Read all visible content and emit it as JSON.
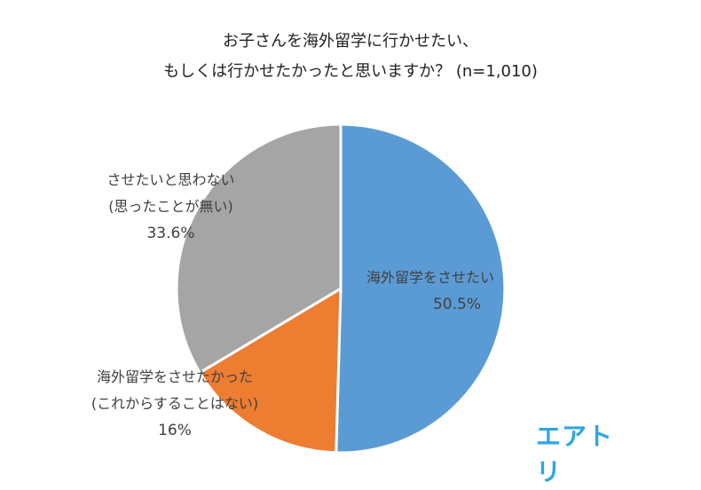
{
  "chart_data": {
    "type": "pie",
    "title_lines": [
      "お子さんを海外留学に行かせたい、",
      "もしくは行かせたかったと思いますか？ (n=1,010)"
    ],
    "slices": [
      {
        "label_lines": [
          "海外留学をさせたい"
        ],
        "value": 50.5,
        "value_label": "50.5%",
        "color": "#5b9bd5"
      },
      {
        "label_lines": [
          "海外留学をさせたかった",
          "(これからすることはない)"
        ],
        "value": 16,
        "value_label": "16%",
        "color": "#ed7d31"
      },
      {
        "label_lines": [
          "させたいと思わない",
          "(思ったことが無い)"
        ],
        "value": 33.6,
        "value_label": "33.6%",
        "color": "#a5a5a5"
      }
    ]
  },
  "logo": {
    "text": "エアトリ",
    "color": "#2ea7e0"
  }
}
